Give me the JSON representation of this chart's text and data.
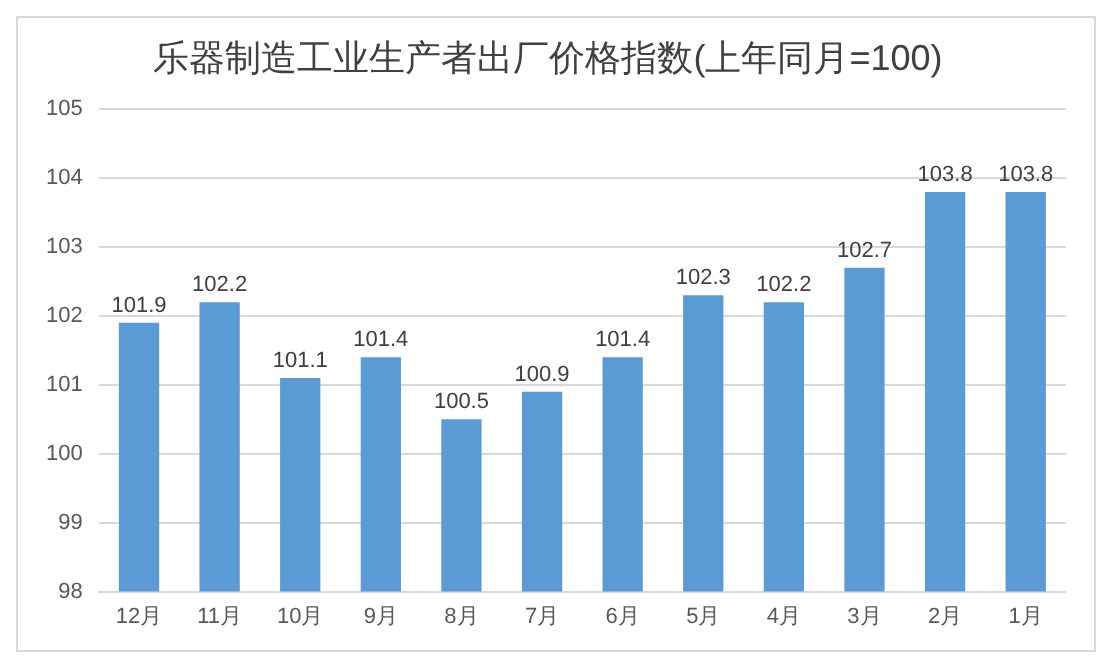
{
  "chart_data": {
    "type": "bar",
    "title": "乐器制造工业生产者出厂价格指数(上年同月=100)",
    "categories": [
      "12月",
      "11月",
      "10月",
      "9月",
      "8月",
      "7月",
      "6月",
      "5月",
      "4月",
      "3月",
      "2月",
      "1月"
    ],
    "values": [
      101.9,
      102.2,
      101.1,
      101.4,
      100.5,
      100.9,
      101.4,
      102.3,
      102.2,
      102.7,
      103.8,
      103.8
    ],
    "color": "#5b9bd5",
    "ylim": [
      98,
      105
    ],
    "yticks": [
      98,
      99,
      100,
      101,
      102,
      103,
      104,
      105
    ],
    "grid": "y",
    "data_labels": true
  }
}
